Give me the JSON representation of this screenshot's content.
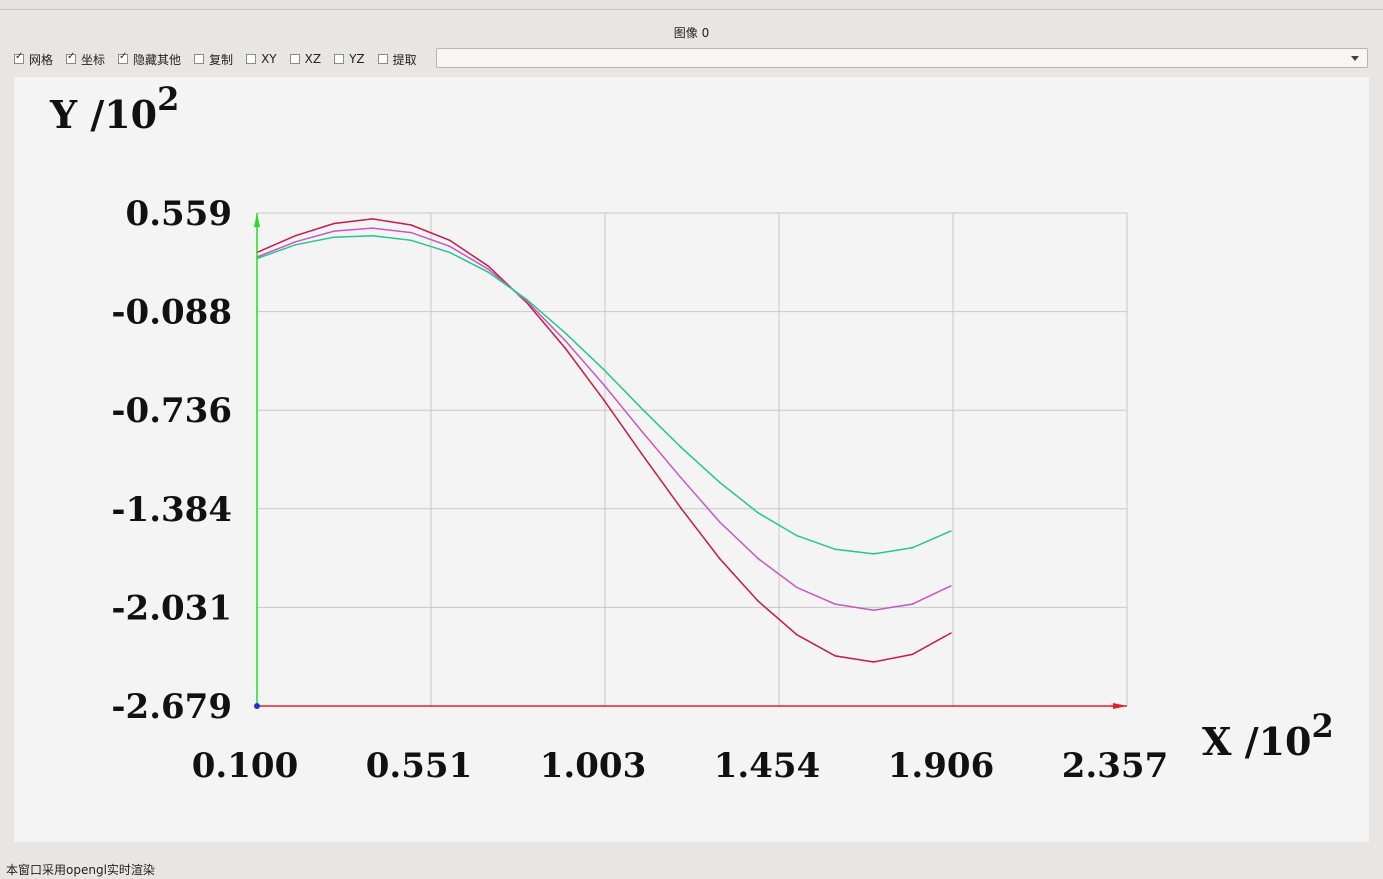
{
  "window": {
    "title": "图像 0"
  },
  "toolbar": {
    "checkboxes": [
      {
        "label": "网格",
        "checked": true
      },
      {
        "label": "坐标",
        "checked": true
      },
      {
        "label": "隐藏其他",
        "checked": true
      },
      {
        "label": "复制",
        "checked": false
      },
      {
        "label": "XY",
        "checked": false
      },
      {
        "label": "XZ",
        "checked": false
      },
      {
        "label": "YZ",
        "checked": false
      },
      {
        "label": "提取",
        "checked": false
      }
    ],
    "combo_value": ""
  },
  "status_text": "本窗口采用opengl实时渲染",
  "colors": {
    "x_axis": "#e0202a",
    "y_axis": "#22dd22",
    "grid": "#c8c8c8",
    "series": [
      "#c8194a",
      "#c858c0",
      "#22c88c"
    ]
  },
  "chart_data": {
    "type": "line",
    "xlabel": "X /10",
    "xlabel_exp": "2",
    "ylabel": "Y /10",
    "ylabel_exp": "2",
    "xlim": [
      0.1,
      2.357
    ],
    "ylim": [
      -2.679,
      0.559
    ],
    "xticks": [
      "0.100",
      "0.551",
      "1.003",
      "1.454",
      "1.906",
      "2.357"
    ],
    "yticks": [
      "0.559",
      "-0.088",
      "-0.736",
      "-1.384",
      "-2.031",
      "-2.679"
    ],
    "grid": true,
    "series": [
      {
        "x": [
          0.1,
          0.2,
          0.3,
          0.4,
          0.5,
          0.6,
          0.7,
          0.8,
          0.9,
          1.0,
          1.1,
          1.2,
          1.3,
          1.4,
          1.5,
          1.6,
          1.7,
          1.8,
          1.9
        ],
        "values": [
          0.3,
          0.41,
          0.49,
          0.52,
          0.48,
          0.38,
          0.21,
          -0.03,
          -0.33,
          -0.67,
          -1.03,
          -1.38,
          -1.71,
          -1.99,
          -2.21,
          -2.35,
          -2.39,
          -2.34,
          -2.2
        ]
      },
      {
        "x": [
          0.1,
          0.2,
          0.3,
          0.4,
          0.5,
          0.6,
          0.7,
          0.8,
          0.9,
          1.0,
          1.1,
          1.2,
          1.3,
          1.4,
          1.5,
          1.6,
          1.7,
          1.8,
          1.9
        ],
        "values": [
          0.27,
          0.37,
          0.44,
          0.46,
          0.43,
          0.34,
          0.19,
          -0.02,
          -0.28,
          -0.57,
          -0.88,
          -1.18,
          -1.47,
          -1.71,
          -1.9,
          -2.01,
          -2.05,
          -2.01,
          -1.89
        ]
      },
      {
        "x": [
          0.1,
          0.2,
          0.3,
          0.4,
          0.5,
          0.6,
          0.7,
          0.8,
          0.9,
          1.0,
          1.1,
          1.2,
          1.3,
          1.4,
          1.5,
          1.6,
          1.7,
          1.8,
          1.9
        ],
        "values": [
          0.26,
          0.35,
          0.4,
          0.41,
          0.38,
          0.3,
          0.17,
          -0.01,
          -0.23,
          -0.47,
          -0.73,
          -0.98,
          -1.21,
          -1.41,
          -1.56,
          -1.65,
          -1.68,
          -1.64,
          -1.53
        ]
      }
    ]
  }
}
